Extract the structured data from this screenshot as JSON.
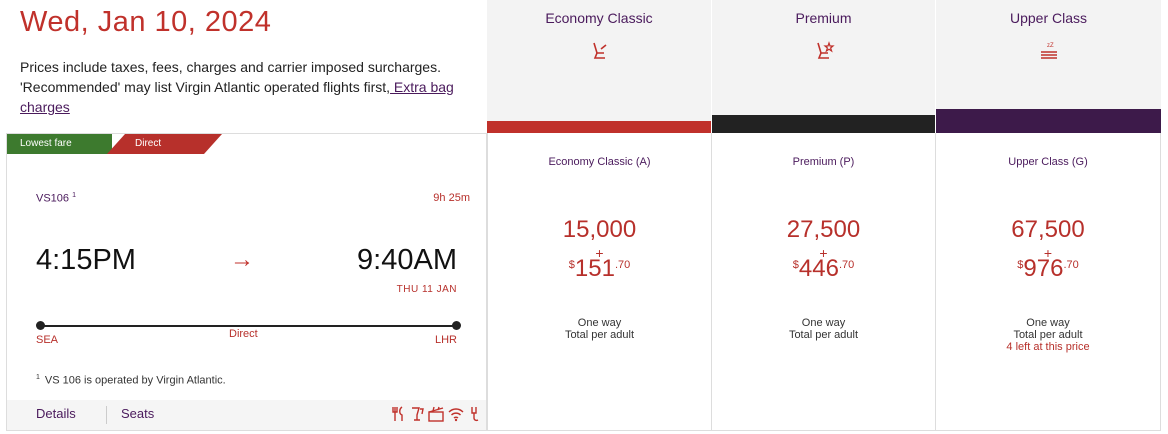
{
  "header": {
    "date": "Wed, Jan 10, 2024",
    "note": "Prices include taxes, fees, charges and carrier imposed surcharges. 'Recommended' may list Virgin Atlantic operated flights first,",
    "extra_bag_link": " Extra bag charges"
  },
  "cabins": [
    {
      "title": "Economy Classic",
      "icon": "seat-icon",
      "color": "#c0312b"
    },
    {
      "title": "Premium",
      "icon": "seat-star-icon",
      "color": "#222222"
    },
    {
      "title": "Upper Class",
      "icon": "bed-icon",
      "color": "#3d1a4a"
    }
  ],
  "flight": {
    "tags": [
      "Lowest fare",
      "Direct"
    ],
    "number": "VS106",
    "footnote_mark": "1",
    "duration": "9h 25m",
    "depart_time": "4:15PM",
    "arrive_time": "9:40AM",
    "arrive_date": "THU 11 JAN",
    "origin": "SEA",
    "destination": "LHR",
    "stop_label": "Direct",
    "operated_by": "VS 106 is operated by Virgin Atlantic.",
    "details_label": "Details",
    "seats_label": "Seats",
    "amenities": [
      "meal-icon",
      "drinks-icon",
      "entertainment-icon",
      "wifi-icon",
      "power-icon"
    ]
  },
  "fares": [
    {
      "name": "Economy Classic (A)",
      "points": "15,000",
      "plus": "+",
      "currency": "$",
      "amount": "151",
      "cents": ".70",
      "type": "One way",
      "per": "Total per adult",
      "availability": ""
    },
    {
      "name": "Premium (P)",
      "points": "27,500",
      "plus": "+",
      "currency": "$",
      "amount": "446",
      "cents": ".70",
      "type": "One way",
      "per": "Total per adult",
      "availability": ""
    },
    {
      "name": "Upper Class (G)",
      "points": "67,500",
      "plus": "+",
      "currency": "$",
      "amount": "976",
      "cents": ".70",
      "type": "One way",
      "per": "Total per adult",
      "availability": "4 left at this price"
    }
  ]
}
